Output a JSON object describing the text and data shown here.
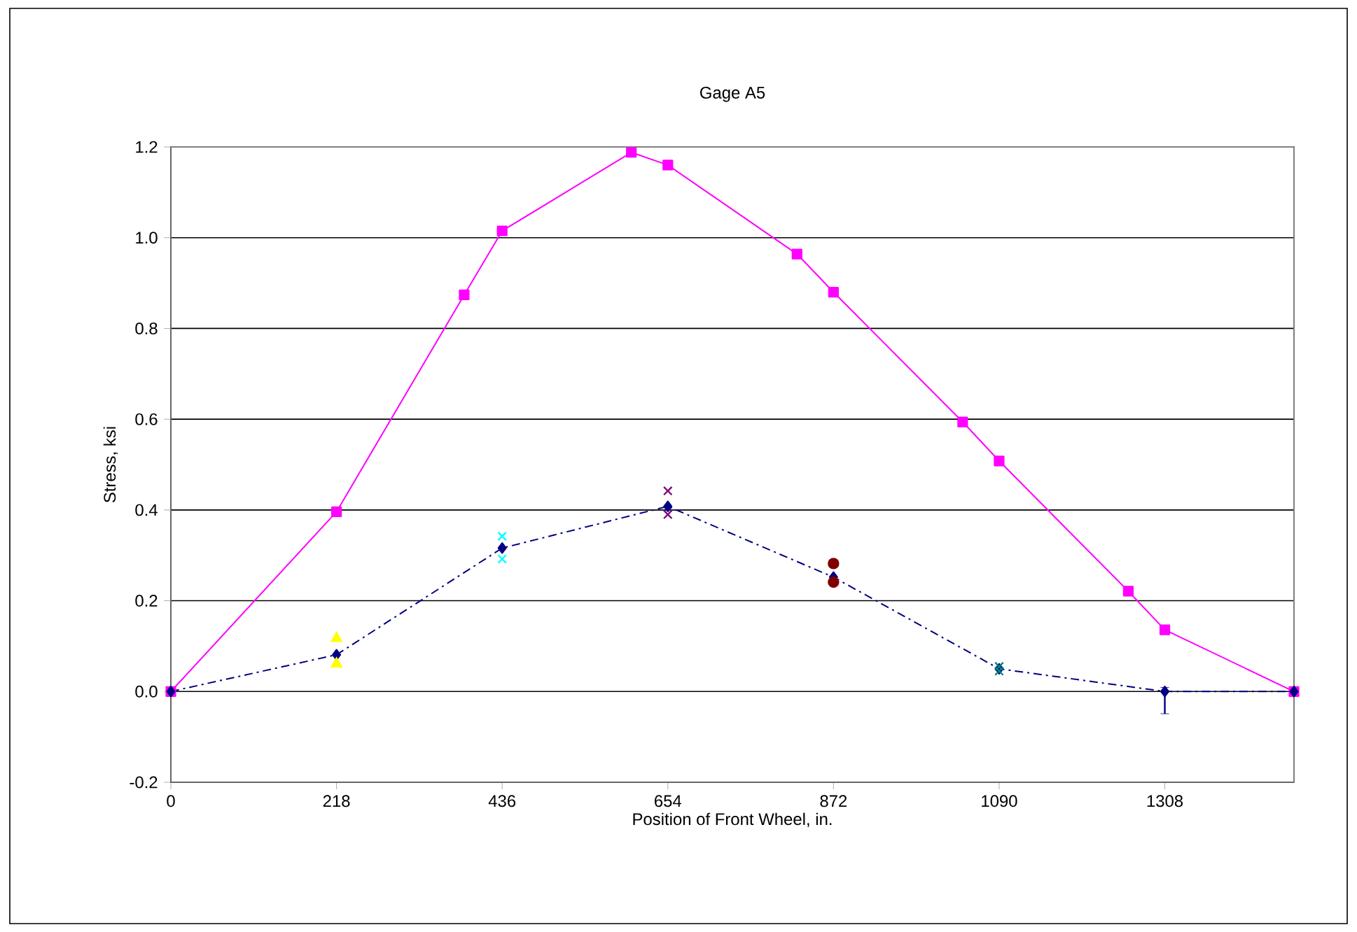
{
  "chart_data": {
    "type": "line",
    "title": "Gage A5",
    "xlabel": "Position of Front Wheel, in.",
    "ylabel": "Stress, ksi",
    "xlim": [
      0,
      1478
    ],
    "xticks": [
      0,
      218,
      436,
      654,
      872,
      1090,
      1308
    ],
    "ylim": [
      -0.2,
      1.2
    ],
    "yticks": [
      {
        "value": -0.2,
        "label": "-0.2"
      },
      {
        "value": 0,
        "label": "0.0"
      },
      {
        "value": 0.2,
        "label": "0.2"
      },
      {
        "value": 0.4,
        "label": "0.4"
      },
      {
        "value": 0.6,
        "label": "0.6"
      },
      {
        "value": 0.8,
        "label": "0.8"
      },
      {
        "value": 1.0,
        "label": "1.0"
      },
      {
        "value": 1.2,
        "label": "1.2"
      }
    ],
    "grid": "y",
    "series": [
      {
        "color": "#ff00ff",
        "marker": "square",
        "line_style": "solid",
        "x": [
          0,
          218,
          386,
          436,
          606,
          654,
          824,
          872,
          1042,
          1090,
          1260,
          1308,
          1478
        ],
        "values": [
          0,
          0.396,
          0.874,
          1.015,
          1.188,
          1.16,
          0.964,
          0.88,
          0.594,
          0.508,
          0.221,
          0.136,
          0
        ]
      },
      {
        "color": "#000080",
        "marker": "diamond",
        "line_style": "dashdot",
        "x": [
          0,
          218,
          436,
          654,
          872,
          1090,
          1308,
          1478
        ],
        "values": [
          0,
          0.081,
          0.316,
          0.408,
          0.252,
          0.05,
          0,
          0
        ],
        "errors": [
          null,
          null,
          null,
          null,
          null,
          null,
          [
            -0.049,
            0.009
          ],
          null
        ]
      },
      {
        "type": "scatter",
        "color": "#ffff00",
        "marker": "triangle",
        "x": [
          218,
          218
        ],
        "values": [
          0.117,
          0.061
        ]
      },
      {
        "type": "scatter",
        "color": "#00ffff",
        "marker": "cross",
        "x": [
          436,
          436
        ],
        "values": [
          0.342,
          0.292
        ]
      },
      {
        "type": "scatter",
        "color": "#800080",
        "marker": "cross",
        "x": [
          654,
          654
        ],
        "values": [
          0.442,
          0.39
        ]
      },
      {
        "type": "scatter",
        "color": "#800000",
        "marker": "circle",
        "x": [
          872,
          872
        ],
        "values": [
          0.282,
          0.241
        ]
      },
      {
        "type": "scatter",
        "color": "#008080",
        "marker": "cross",
        "x": [
          1090,
          1090
        ],
        "values": [
          0.055,
          0.045
        ]
      }
    ]
  }
}
